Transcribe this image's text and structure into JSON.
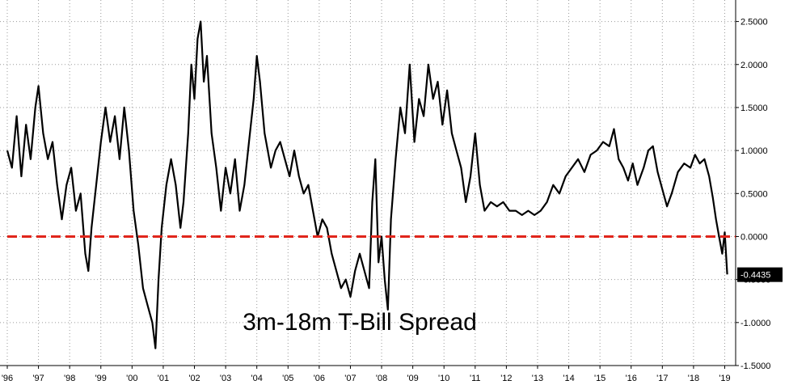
{
  "chart_data": {
    "type": "line",
    "title": "3m-18m T-Bill Spread",
    "xlabel": "",
    "ylabel": "",
    "x_range": [
      1996.0,
      2019.35
    ],
    "ylim": [
      -1.5,
      2.75
    ],
    "grid": true,
    "x_ticks": [
      {
        "value": 1996,
        "label": "'96"
      },
      {
        "value": 1997,
        "label": "'97"
      },
      {
        "value": 1998,
        "label": "'98"
      },
      {
        "value": 1999,
        "label": "'99"
      },
      {
        "value": 2000,
        "label": "'00"
      },
      {
        "value": 2001,
        "label": "'01"
      },
      {
        "value": 2002,
        "label": "'02"
      },
      {
        "value": 2003,
        "label": "'03"
      },
      {
        "value": 2004,
        "label": "'04"
      },
      {
        "value": 2005,
        "label": "'05"
      },
      {
        "value": 2006,
        "label": "'06"
      },
      {
        "value": 2007,
        "label": "'07"
      },
      {
        "value": 2008,
        "label": "'08"
      },
      {
        "value": 2009,
        "label": "'09"
      },
      {
        "value": 2010,
        "label": "'10"
      },
      {
        "value": 2011,
        "label": "'11"
      },
      {
        "value": 2012,
        "label": "'12"
      },
      {
        "value": 2013,
        "label": "'13"
      },
      {
        "value": 2014,
        "label": "'14"
      },
      {
        "value": 2015,
        "label": "'15"
      },
      {
        "value": 2016,
        "label": "'16"
      },
      {
        "value": 2017,
        "label": "'17"
      },
      {
        "value": 2018,
        "label": "'18"
      },
      {
        "value": 2019,
        "label": "'19"
      }
    ],
    "y_ticks": [
      {
        "value": 2.5,
        "label": "2.5000"
      },
      {
        "value": 2.0,
        "label": "2.0000"
      },
      {
        "value": 1.5,
        "label": "1.5000"
      },
      {
        "value": 1.0,
        "label": "1.0000"
      },
      {
        "value": 0.5,
        "label": "0.5000"
      },
      {
        "value": 0.0,
        "label": "0.0000"
      },
      {
        "value": -0.5,
        "label": "-0.5000"
      },
      {
        "value": -1.0,
        "label": "-1.0000"
      },
      {
        "value": -1.5,
        "label": "-1.5000"
      }
    ],
    "reference_line": {
      "y": 0.0,
      "color": "#e0261c",
      "style": "dashed"
    },
    "last_value": {
      "label": "-0.4435",
      "value": -0.4435
    },
    "series": [
      {
        "color": "#000000",
        "points": [
          [
            1996.0,
            1.0
          ],
          [
            1996.15,
            0.8
          ],
          [
            1996.3,
            1.4
          ],
          [
            1996.45,
            0.7
          ],
          [
            1996.6,
            1.3
          ],
          [
            1996.75,
            0.9
          ],
          [
            1996.9,
            1.5
          ],
          [
            1997.0,
            1.75
          ],
          [
            1997.15,
            1.2
          ],
          [
            1997.3,
            0.9
          ],
          [
            1997.45,
            1.1
          ],
          [
            1997.6,
            0.6
          ],
          [
            1997.75,
            0.2
          ],
          [
            1997.9,
            0.6
          ],
          [
            1998.05,
            0.8
          ],
          [
            1998.2,
            0.3
          ],
          [
            1998.35,
            0.5
          ],
          [
            1998.5,
            -0.2
          ],
          [
            1998.6,
            -0.4
          ],
          [
            1998.7,
            0.1
          ],
          [
            1998.85,
            0.6
          ],
          [
            1999.0,
            1.1
          ],
          [
            1999.15,
            1.5
          ],
          [
            1999.3,
            1.1
          ],
          [
            1999.45,
            1.4
          ],
          [
            1999.6,
            0.9
          ],
          [
            1999.75,
            1.5
          ],
          [
            1999.9,
            1.0
          ],
          [
            2000.05,
            0.3
          ],
          [
            2000.2,
            -0.1
          ],
          [
            2000.35,
            -0.6
          ],
          [
            2000.5,
            -0.8
          ],
          [
            2000.65,
            -1.0
          ],
          [
            2000.75,
            -1.3
          ],
          [
            2000.85,
            -0.5
          ],
          [
            2000.95,
            0.1
          ],
          [
            2001.1,
            0.6
          ],
          [
            2001.25,
            0.9
          ],
          [
            2001.4,
            0.6
          ],
          [
            2001.55,
            0.1
          ],
          [
            2001.65,
            0.4
          ],
          [
            2001.8,
            1.2
          ],
          [
            2001.9,
            2.0
          ],
          [
            2002.0,
            1.6
          ],
          [
            2002.1,
            2.3
          ],
          [
            2002.2,
            2.5
          ],
          [
            2002.3,
            1.8
          ],
          [
            2002.4,
            2.1
          ],
          [
            2002.55,
            1.2
          ],
          [
            2002.7,
            0.8
          ],
          [
            2002.85,
            0.3
          ],
          [
            2003.0,
            0.8
          ],
          [
            2003.15,
            0.5
          ],
          [
            2003.3,
            0.9
          ],
          [
            2003.45,
            0.3
          ],
          [
            2003.6,
            0.6
          ],
          [
            2003.75,
            1.1
          ],
          [
            2003.9,
            1.6
          ],
          [
            2004.0,
            2.1
          ],
          [
            2004.1,
            1.8
          ],
          [
            2004.25,
            1.2
          ],
          [
            2004.45,
            0.8
          ],
          [
            2004.6,
            1.0
          ],
          [
            2004.75,
            1.1
          ],
          [
            2004.9,
            0.9
          ],
          [
            2005.05,
            0.7
          ],
          [
            2005.2,
            1.0
          ],
          [
            2005.35,
            0.7
          ],
          [
            2005.5,
            0.5
          ],
          [
            2005.65,
            0.6
          ],
          [
            2005.8,
            0.3
          ],
          [
            2005.95,
            0.0
          ],
          [
            2006.1,
            0.2
          ],
          [
            2006.25,
            0.1
          ],
          [
            2006.4,
            -0.2
          ],
          [
            2006.55,
            -0.4
          ],
          [
            2006.7,
            -0.6
          ],
          [
            2006.85,
            -0.5
          ],
          [
            2007.0,
            -0.7
          ],
          [
            2007.15,
            -0.4
          ],
          [
            2007.3,
            -0.2
          ],
          [
            2007.45,
            -0.4
          ],
          [
            2007.6,
            -0.6
          ],
          [
            2007.7,
            0.4
          ],
          [
            2007.8,
            0.9
          ],
          [
            2007.9,
            -0.3
          ],
          [
            2008.0,
            0.0
          ],
          [
            2008.1,
            -0.5
          ],
          [
            2008.2,
            -0.85
          ],
          [
            2008.3,
            0.2
          ],
          [
            2008.45,
            0.9
          ],
          [
            2008.6,
            1.5
          ],
          [
            2008.75,
            1.2
          ],
          [
            2008.9,
            2.0
          ],
          [
            2009.05,
            1.1
          ],
          [
            2009.2,
            1.6
          ],
          [
            2009.35,
            1.4
          ],
          [
            2009.5,
            2.0
          ],
          [
            2009.65,
            1.6
          ],
          [
            2009.8,
            1.8
          ],
          [
            2009.95,
            1.3
          ],
          [
            2010.1,
            1.7
          ],
          [
            2010.25,
            1.2
          ],
          [
            2010.4,
            1.0
          ],
          [
            2010.55,
            0.8
          ],
          [
            2010.7,
            0.4
          ],
          [
            2010.85,
            0.7
          ],
          [
            2011.0,
            1.2
          ],
          [
            2011.15,
            0.6
          ],
          [
            2011.3,
            0.3
          ],
          [
            2011.5,
            0.4
          ],
          [
            2011.7,
            0.35
          ],
          [
            2011.9,
            0.4
          ],
          [
            2012.1,
            0.3
          ],
          [
            2012.3,
            0.3
          ],
          [
            2012.5,
            0.25
          ],
          [
            2012.7,
            0.3
          ],
          [
            2012.9,
            0.25
          ],
          [
            2013.1,
            0.3
          ],
          [
            2013.3,
            0.4
          ],
          [
            2013.5,
            0.6
          ],
          [
            2013.7,
            0.5
          ],
          [
            2013.9,
            0.7
          ],
          [
            2014.1,
            0.8
          ],
          [
            2014.3,
            0.9
          ],
          [
            2014.5,
            0.75
          ],
          [
            2014.7,
            0.95
          ],
          [
            2014.9,
            1.0
          ],
          [
            2015.1,
            1.1
          ],
          [
            2015.3,
            1.05
          ],
          [
            2015.45,
            1.25
          ],
          [
            2015.6,
            0.9
          ],
          [
            2015.75,
            0.8
          ],
          [
            2015.9,
            0.65
          ],
          [
            2016.05,
            0.85
          ],
          [
            2016.2,
            0.6
          ],
          [
            2016.4,
            0.8
          ],
          [
            2016.55,
            1.0
          ],
          [
            2016.7,
            1.05
          ],
          [
            2016.85,
            0.75
          ],
          [
            2017.0,
            0.55
          ],
          [
            2017.15,
            0.35
          ],
          [
            2017.3,
            0.5
          ],
          [
            2017.5,
            0.75
          ],
          [
            2017.7,
            0.85
          ],
          [
            2017.9,
            0.8
          ],
          [
            2018.05,
            0.95
          ],
          [
            2018.2,
            0.85
          ],
          [
            2018.35,
            0.9
          ],
          [
            2018.5,
            0.7
          ],
          [
            2018.62,
            0.45
          ],
          [
            2018.72,
            0.2
          ],
          [
            2018.82,
            0.0
          ],
          [
            2018.92,
            -0.2
          ],
          [
            2019.0,
            0.05
          ],
          [
            2019.08,
            -0.44
          ]
        ]
      }
    ]
  }
}
